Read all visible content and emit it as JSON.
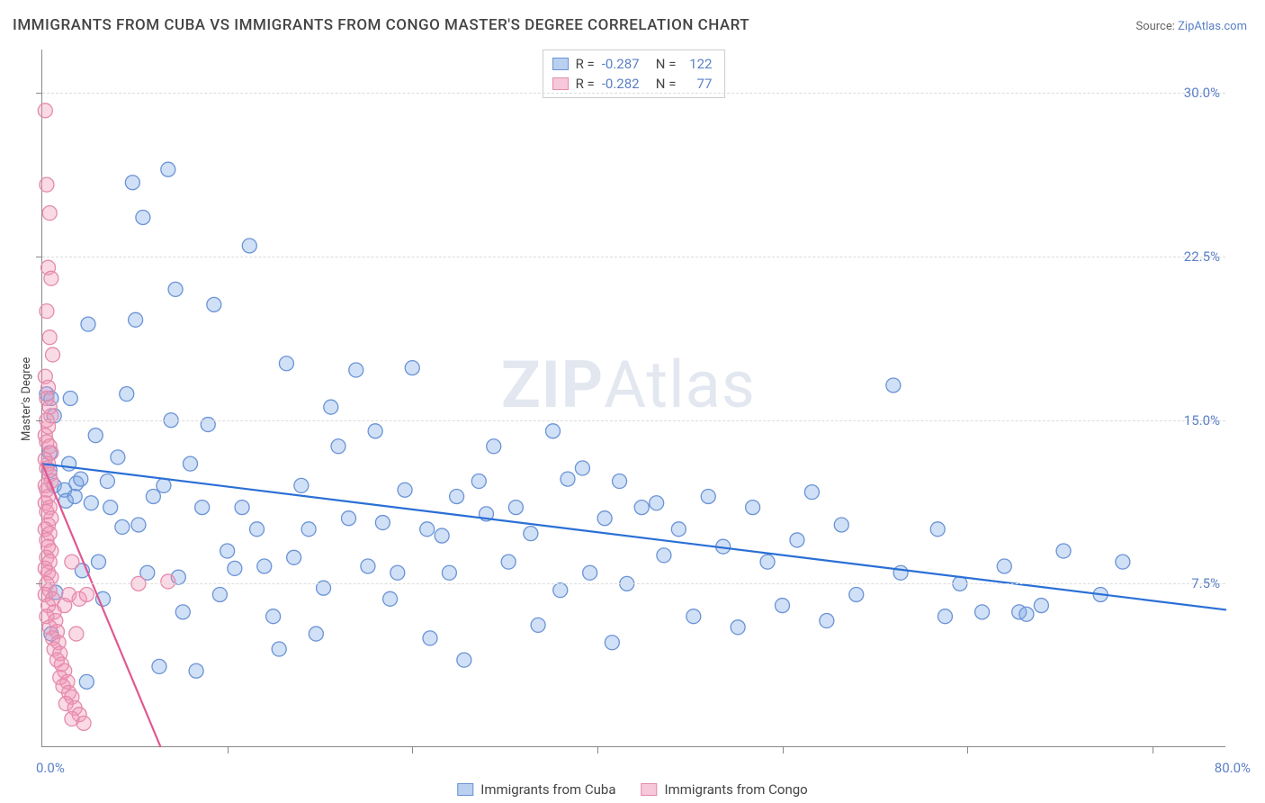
{
  "title": "IMMIGRANTS FROM CUBA VS IMMIGRANTS FROM CONGO MASTER'S DEGREE CORRELATION CHART",
  "source_prefix": "Source: ",
  "source_link": "ZipAtlas.com",
  "y_axis_label": "Master's Degree",
  "watermark_bold": "ZIP",
  "watermark_rest": "Atlas",
  "chart": {
    "type": "scatter",
    "xlim": [
      0,
      80
    ],
    "ylim": [
      0,
      32
    ],
    "x_origin_label": "0.0%",
    "x_max_label": "80.0%",
    "y_ticks": [
      {
        "v": 7.5,
        "label": "7.5%"
      },
      {
        "v": 15.0,
        "label": "15.0%"
      },
      {
        "v": 22.5,
        "label": "22.5%"
      },
      {
        "v": 30.0,
        "label": "30.0%"
      }
    ],
    "x_tick_positions": [
      12.5,
      25,
      37.5,
      50,
      62.5,
      75
    ],
    "grid_color": "#dcdcdc",
    "axis_color": "#888888",
    "tick_label_color": "#5b7fc7",
    "background_color": "#ffffff",
    "marker_radius": 8,
    "marker_stroke_width": 1.3,
    "trend_line_width": 2.2,
    "series": [
      {
        "name": "Immigrants from Cuba",
        "color_fill": "rgba(120, 165, 230, 0.35)",
        "color_stroke": "#6a93d6",
        "swatch_fill": "#b9d0f0",
        "swatch_stroke": "#6a93d6",
        "trend_color": "#2a6fd6",
        "R": "-0.287",
        "N": "122",
        "trend": {
          "x1": 0,
          "y1": 13.0,
          "x2": 80,
          "y2": 6.3
        },
        "points": [
          [
            0.3,
            16.2
          ],
          [
            0.6,
            16.0
          ],
          [
            0.5,
            13.5
          ],
          [
            0.5,
            12.7
          ],
          [
            0.8,
            12.0
          ],
          [
            0.8,
            15.2
          ],
          [
            0.6,
            5.2
          ],
          [
            0.9,
            7.1
          ],
          [
            1.5,
            11.8
          ],
          [
            1.6,
            11.3
          ],
          [
            1.8,
            13.0
          ],
          [
            1.9,
            16.0
          ],
          [
            2.2,
            11.5
          ],
          [
            2.3,
            12.1
          ],
          [
            2.6,
            12.3
          ],
          [
            2.7,
            8.1
          ],
          [
            3.0,
            3.0
          ],
          [
            3.1,
            19.4
          ],
          [
            3.3,
            11.2
          ],
          [
            3.6,
            14.3
          ],
          [
            3.8,
            8.5
          ],
          [
            4.1,
            6.8
          ],
          [
            4.4,
            12.2
          ],
          [
            4.6,
            11.0
          ],
          [
            5.1,
            13.3
          ],
          [
            5.4,
            10.1
          ],
          [
            5.7,
            16.2
          ],
          [
            6.1,
            25.9
          ],
          [
            6.3,
            19.6
          ],
          [
            6.5,
            10.2
          ],
          [
            6.8,
            24.3
          ],
          [
            7.1,
            8.0
          ],
          [
            7.5,
            11.5
          ],
          [
            7.9,
            3.7
          ],
          [
            8.2,
            12.0
          ],
          [
            8.5,
            26.5
          ],
          [
            8.7,
            15.0
          ],
          [
            9.0,
            21.0
          ],
          [
            9.2,
            7.8
          ],
          [
            9.5,
            6.2
          ],
          [
            10.0,
            13.0
          ],
          [
            10.4,
            3.5
          ],
          [
            10.8,
            11.0
          ],
          [
            11.2,
            14.8
          ],
          [
            11.6,
            20.3
          ],
          [
            12.0,
            7.0
          ],
          [
            12.5,
            9.0
          ],
          [
            13.0,
            8.2
          ],
          [
            13.5,
            11.0
          ],
          [
            14.0,
            23.0
          ],
          [
            14.5,
            10.0
          ],
          [
            15.0,
            8.3
          ],
          [
            15.6,
            6.0
          ],
          [
            16.0,
            4.5
          ],
          [
            16.5,
            17.6
          ],
          [
            17.0,
            8.7
          ],
          [
            17.5,
            12.0
          ],
          [
            18.0,
            10.0
          ],
          [
            18.5,
            5.2
          ],
          [
            19.0,
            7.3
          ],
          [
            19.5,
            15.6
          ],
          [
            20.0,
            13.8
          ],
          [
            20.7,
            10.5
          ],
          [
            21.2,
            17.3
          ],
          [
            22.0,
            8.3
          ],
          [
            22.5,
            14.5
          ],
          [
            23.0,
            10.3
          ],
          [
            23.5,
            6.8
          ],
          [
            24.0,
            8.0
          ],
          [
            24.5,
            11.8
          ],
          [
            25.0,
            17.4
          ],
          [
            26.0,
            10.0
          ],
          [
            26.2,
            5.0
          ],
          [
            27.0,
            9.7
          ],
          [
            27.5,
            8.0
          ],
          [
            28.0,
            11.5
          ],
          [
            28.5,
            4.0
          ],
          [
            29.5,
            12.2
          ],
          [
            30.0,
            10.7
          ],
          [
            30.5,
            13.8
          ],
          [
            31.5,
            8.5
          ],
          [
            32.0,
            11.0
          ],
          [
            33.0,
            9.8
          ],
          [
            33.5,
            5.6
          ],
          [
            34.5,
            14.5
          ],
          [
            35.0,
            7.2
          ],
          [
            35.5,
            12.3
          ],
          [
            36.5,
            12.8
          ],
          [
            37.0,
            8.0
          ],
          [
            38.0,
            10.5
          ],
          [
            38.5,
            4.8
          ],
          [
            39.0,
            12.2
          ],
          [
            39.5,
            7.5
          ],
          [
            40.5,
            11.0
          ],
          [
            41.5,
            11.2
          ],
          [
            42.0,
            8.8
          ],
          [
            43.0,
            10.0
          ],
          [
            44.0,
            6.0
          ],
          [
            45.0,
            11.5
          ],
          [
            46.0,
            9.2
          ],
          [
            47.0,
            5.5
          ],
          [
            48.0,
            11.0
          ],
          [
            49.0,
            8.5
          ],
          [
            50.0,
            6.5
          ],
          [
            51.0,
            9.5
          ],
          [
            52.0,
            11.7
          ],
          [
            53.0,
            5.8
          ],
          [
            54.0,
            10.2
          ],
          [
            55.0,
            7.0
          ],
          [
            57.5,
            16.6
          ],
          [
            58.0,
            8.0
          ],
          [
            60.5,
            10.0
          ],
          [
            61.0,
            6.0
          ],
          [
            62.0,
            7.5
          ],
          [
            63.5,
            6.2
          ],
          [
            65.0,
            8.3
          ],
          [
            66.0,
            6.2
          ],
          [
            66.5,
            6.1
          ],
          [
            67.5,
            6.5
          ],
          [
            69.0,
            9.0
          ],
          [
            71.5,
            7.0
          ],
          [
            73.0,
            8.5
          ]
        ]
      },
      {
        "name": "Immigrants from Congo",
        "color_fill": "rgba(240, 150, 180, 0.35)",
        "color_stroke": "#e48bad",
        "swatch_fill": "#f6c8da",
        "swatch_stroke": "#e48bad",
        "trend_color": "#e0588f",
        "R": "-0.282",
        "N": "77",
        "trend": {
          "x1": 0,
          "y1": 13.0,
          "x2": 8.0,
          "y2": 0
        },
        "points": [
          [
            0.2,
            29.2
          ],
          [
            0.3,
            25.8
          ],
          [
            0.5,
            24.5
          ],
          [
            0.4,
            22.0
          ],
          [
            0.6,
            21.5
          ],
          [
            0.3,
            20.0
          ],
          [
            0.5,
            18.8
          ],
          [
            0.7,
            18.0
          ],
          [
            0.2,
            17.0
          ],
          [
            0.4,
            16.5
          ],
          [
            0.3,
            16.0
          ],
          [
            0.5,
            15.6
          ],
          [
            0.6,
            15.2
          ],
          [
            0.3,
            15.0
          ],
          [
            0.4,
            14.7
          ],
          [
            0.2,
            14.3
          ],
          [
            0.3,
            14.0
          ],
          [
            0.5,
            13.8
          ],
          [
            0.6,
            13.5
          ],
          [
            0.2,
            13.2
          ],
          [
            0.4,
            13.0
          ],
          [
            0.3,
            12.8
          ],
          [
            0.5,
            12.5
          ],
          [
            0.6,
            12.2
          ],
          [
            0.2,
            12.0
          ],
          [
            0.3,
            11.8
          ],
          [
            0.4,
            11.5
          ],
          [
            0.2,
            11.2
          ],
          [
            0.5,
            11.0
          ],
          [
            0.3,
            10.8
          ],
          [
            0.6,
            10.5
          ],
          [
            0.4,
            10.2
          ],
          [
            0.2,
            10.0
          ],
          [
            0.5,
            9.8
          ],
          [
            0.3,
            9.5
          ],
          [
            0.4,
            9.2
          ],
          [
            0.6,
            9.0
          ],
          [
            0.3,
            8.7
          ],
          [
            0.5,
            8.5
          ],
          [
            0.2,
            8.2
          ],
          [
            0.4,
            8.0
          ],
          [
            0.6,
            7.8
          ],
          [
            0.3,
            7.5
          ],
          [
            0.5,
            7.2
          ],
          [
            0.2,
            7.0
          ],
          [
            0.7,
            6.8
          ],
          [
            0.4,
            6.5
          ],
          [
            0.8,
            6.2
          ],
          [
            0.3,
            6.0
          ],
          [
            0.9,
            5.8
          ],
          [
            0.5,
            5.5
          ],
          [
            1.0,
            5.3
          ],
          [
            0.7,
            5.0
          ],
          [
            1.1,
            4.8
          ],
          [
            0.8,
            4.5
          ],
          [
            1.2,
            4.3
          ],
          [
            1.0,
            4.0
          ],
          [
            1.3,
            3.8
          ],
          [
            1.5,
            3.5
          ],
          [
            1.2,
            3.2
          ],
          [
            1.7,
            3.0
          ],
          [
            1.4,
            2.8
          ],
          [
            1.8,
            2.5
          ],
          [
            2.0,
            2.3
          ],
          [
            1.6,
            2.0
          ],
          [
            2.2,
            1.8
          ],
          [
            2.5,
            1.5
          ],
          [
            2.0,
            1.3
          ],
          [
            2.8,
            1.1
          ],
          [
            1.5,
            6.5
          ],
          [
            1.8,
            7.0
          ],
          [
            2.0,
            8.5
          ],
          [
            2.3,
            5.2
          ],
          [
            2.5,
            6.8
          ],
          [
            3.0,
            7.0
          ],
          [
            6.5,
            7.5
          ],
          [
            8.5,
            7.6
          ]
        ]
      }
    ]
  },
  "stats_legend": {
    "r_label": "R =",
    "n_label": "N ="
  },
  "bottom_legend": {
    "item1": "Immigrants from Cuba",
    "item2": "Immigrants from Congo"
  }
}
